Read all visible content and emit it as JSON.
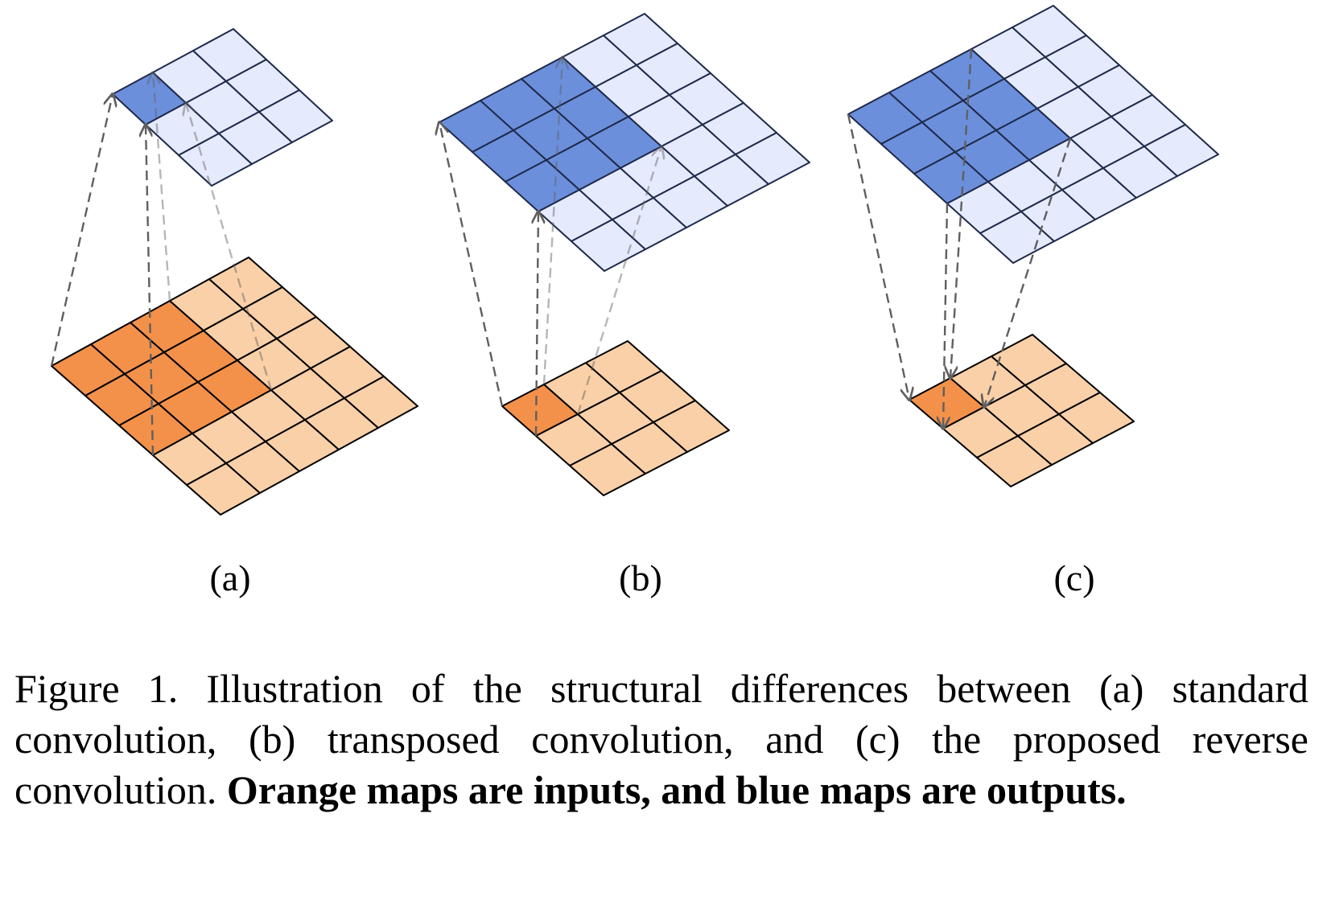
{
  "panels": [
    {
      "label": "(a)",
      "input_size": 5,
      "output_size": 3,
      "input_highlight": [
        3,
        3
      ],
      "output_highlight": [
        1,
        1
      ],
      "arrow_direction": "input-to-output"
    },
    {
      "label": "(b)",
      "input_size": 3,
      "output_size": 5,
      "input_highlight": [
        1,
        1
      ],
      "output_highlight": [
        3,
        3
      ],
      "arrow_direction": "input-to-output"
    },
    {
      "label": "(c)",
      "input_size": 3,
      "output_size": 5,
      "input_highlight": [
        1,
        1
      ],
      "output_highlight": [
        3,
        3
      ],
      "arrow_direction": "output-to-input"
    }
  ],
  "colors": {
    "input_cell": "#f9d0a8",
    "input_highlight": "#f3914a",
    "output_cell": "#e5ebfd",
    "output_highlight": "#6c8fdc",
    "input_grid_line": "#000000",
    "output_grid_line": "#1f2a4a",
    "arrow": "#5f5f5f"
  },
  "caption": {
    "prefix": "Figure 1. Illustration of the structural differences between (a) standard convolution, (b) transposed convolution, and (c) the proposed reverse convolution. ",
    "bold": "Orange maps are inputs, and blue maps are outputs."
  }
}
